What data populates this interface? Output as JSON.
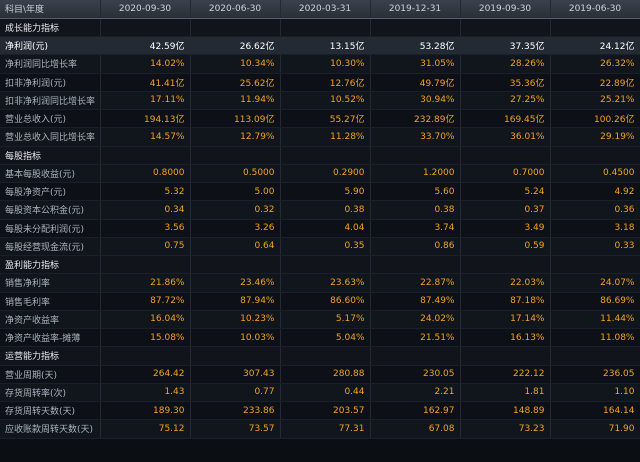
{
  "header": [
    "科目\\年度",
    "2020-09-30",
    "2020-06-30",
    "2020-03-31",
    "2019-12-31",
    "2019-09-30",
    "2019-06-30"
  ],
  "sections": [
    {
      "title": "成长能力指标",
      "rows": [
        {
          "label": "净利润(元)",
          "values": [
            "42.59亿",
            "26.62亿",
            "13.15亿",
            "53.28亿",
            "37.35亿",
            "24.12亿"
          ],
          "highlight": true
        },
        {
          "label": "净利润同比增长率",
          "values": [
            "14.02%",
            "10.34%",
            "10.30%",
            "31.05%",
            "28.26%",
            "26.32%"
          ]
        },
        {
          "label": "扣非净利润(元)",
          "values": [
            "41.41亿",
            "25.62亿",
            "12.76亿",
            "49.79亿",
            "35.36亿",
            "22.89亿"
          ]
        },
        {
          "label": "扣非净利润同比增长率",
          "values": [
            "17.11%",
            "11.94%",
            "10.52%",
            "30.94%",
            "27.25%",
            "25.21%"
          ]
        },
        {
          "label": "营业总收入(元)",
          "values": [
            "194.13亿",
            "113.09亿",
            "55.27亿",
            "232.89亿",
            "169.45亿",
            "100.26亿"
          ]
        },
        {
          "label": "营业总收入同比增长率",
          "values": [
            "14.57%",
            "12.79%",
            "11.28%",
            "33.70%",
            "36.01%",
            "29.19%"
          ]
        }
      ]
    },
    {
      "title": "每股指标",
      "rows": [
        {
          "label": "基本每股收益(元)",
          "values": [
            "0.8000",
            "0.5000",
            "0.2900",
            "1.2000",
            "0.7000",
            "0.4500"
          ]
        },
        {
          "label": "每股净资产(元)",
          "values": [
            "5.32",
            "5.00",
            "5.90",
            "5.60",
            "5.24",
            "4.92"
          ]
        },
        {
          "label": "每股资本公积金(元)",
          "values": [
            "0.34",
            "0.32",
            "0.38",
            "0.38",
            "0.37",
            "0.36"
          ]
        },
        {
          "label": "每股未分配利润(元)",
          "values": [
            "3.56",
            "3.26",
            "4.04",
            "3.74",
            "3.49",
            "3.18"
          ]
        },
        {
          "label": "每股经营现金流(元)",
          "values": [
            "0.75",
            "0.64",
            "0.35",
            "0.86",
            "0.59",
            "0.33"
          ]
        }
      ]
    },
    {
      "title": "盈利能力指标",
      "rows": [
        {
          "label": "销售净利率",
          "values": [
            "21.86%",
            "23.46%",
            "23.63%",
            "22.87%",
            "22.03%",
            "24.07%"
          ]
        },
        {
          "label": "销售毛利率",
          "values": [
            "87.72%",
            "87.94%",
            "86.60%",
            "87.49%",
            "87.18%",
            "86.69%"
          ]
        },
        {
          "label": "净资产收益率",
          "values": [
            "16.04%",
            "10.23%",
            "5.17%",
            "24.02%",
            "17.14%",
            "11.44%"
          ]
        },
        {
          "label": "净资产收益率-摊薄",
          "values": [
            "15.08%",
            "10.03%",
            "5.04%",
            "21.51%",
            "16.13%",
            "11.08%"
          ]
        }
      ]
    },
    {
      "title": "运营能力指标",
      "rows": [
        {
          "label": "营业周期(天)",
          "values": [
            "264.42",
            "307.43",
            "280.88",
            "230.05",
            "222.12",
            "236.05"
          ]
        },
        {
          "label": "存货周转率(次)",
          "values": [
            "1.43",
            "0.77",
            "0.44",
            "2.21",
            "1.81",
            "1.10"
          ]
        },
        {
          "label": "存货周转天数(天)",
          "values": [
            "189.30",
            "233.86",
            "203.57",
            "162.97",
            "148.89",
            "164.14"
          ]
        },
        {
          "label": "应收账款周转天数(天)",
          "values": [
            "75.12",
            "73.57",
            "77.31",
            "67.08",
            "73.23",
            "71.90"
          ]
        }
      ]
    }
  ]
}
